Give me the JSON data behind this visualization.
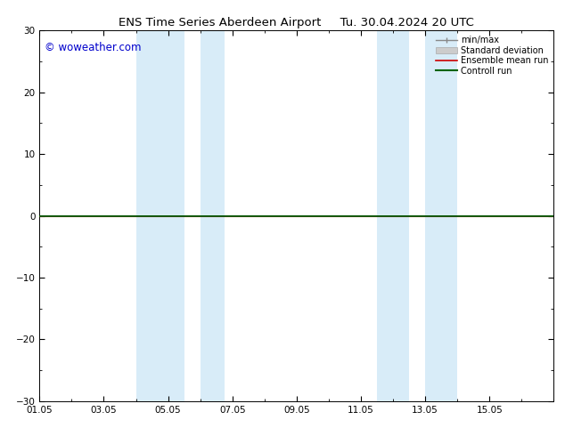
{
  "title": "ENS Time Series Aberdeen Airport     Tu. 30.04.2024 20 UTC",
  "ylim": [
    -30,
    30
  ],
  "yticks": [
    -30,
    -20,
    -10,
    0,
    10,
    20,
    30
  ],
  "xtick_labels": [
    "01.05",
    "03.05",
    "05.05",
    "07.05",
    "09.05",
    "11.05",
    "13.05",
    "15.05"
  ],
  "xtick_positions": [
    0,
    2,
    4,
    6,
    8,
    10,
    12,
    14
  ],
  "x_min": 0,
  "x_max": 16,
  "blue_bands": [
    {
      "x_start": 3.0,
      "x_end": 4.5
    },
    {
      "x_start": 5.0,
      "x_end": 5.75
    },
    {
      "x_start": 10.5,
      "x_end": 11.5
    },
    {
      "x_start": 12.0,
      "x_end": 13.0
    }
  ],
  "band_color": "#d8ecf8",
  "control_run_color": "#006400",
  "ensemble_mean_color": "#cc0000",
  "watermark_text": "© woweather.com",
  "watermark_color": "#0000cc",
  "bg_color": "#ffffff",
  "title_fontsize": 9.5,
  "tick_fontsize": 7.5,
  "watermark_fontsize": 8.5,
  "legend_fontsize": 7,
  "figsize": [
    6.34,
    4.9
  ],
  "dpi": 100
}
